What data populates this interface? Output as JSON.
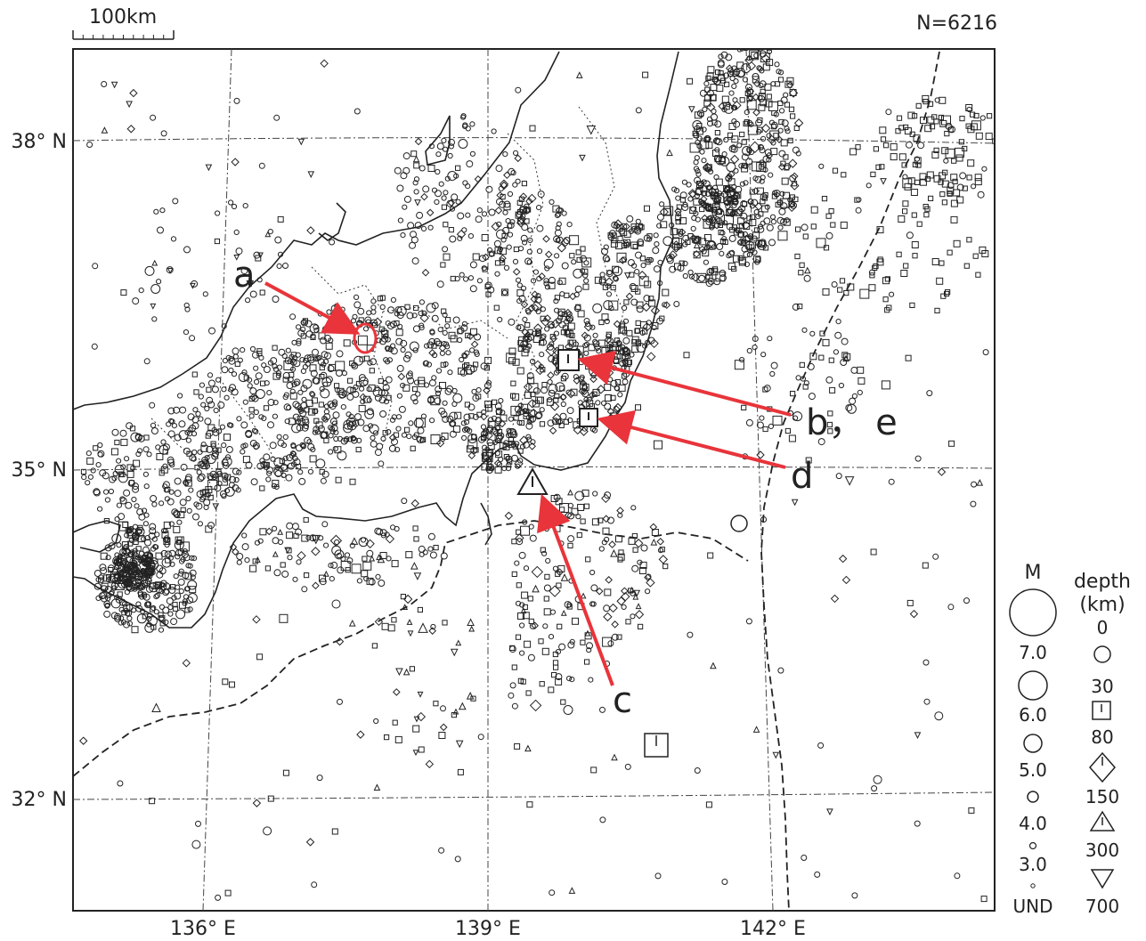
{
  "scale_bar": {
    "label": "100km"
  },
  "count_label": "N=6216",
  "lat_labels": [
    "38° N",
    "35° N",
    "32° N"
  ],
  "lon_labels": [
    "136° E",
    "139° E",
    "142° E"
  ],
  "annotations": {
    "a": "a",
    "be": "b， e",
    "c": "c",
    "d": "d"
  },
  "legend": {
    "mag_title": "M",
    "mag_values": [
      "7.0",
      "6.0",
      "5.0",
      "4.0",
      "3.0",
      "UND"
    ],
    "depth_title_1": "depth",
    "depth_title_2": "(km)",
    "depth_values": [
      "0",
      "30",
      "80",
      "150",
      "300",
      "700"
    ]
  },
  "colors": {
    "arrow": "#e8343a",
    "ink": "#222222"
  }
}
